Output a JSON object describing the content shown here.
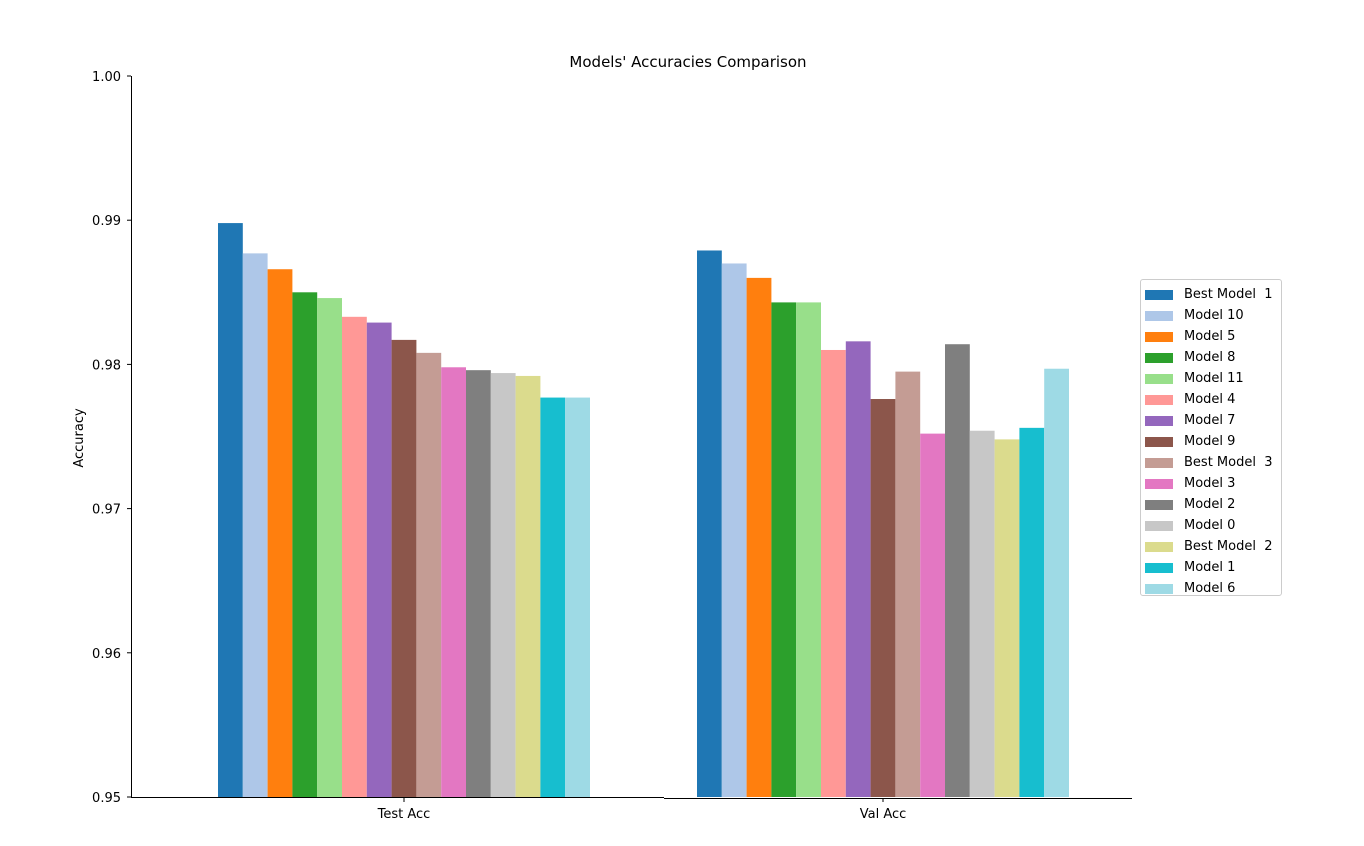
{
  "chart_data": {
    "type": "bar",
    "title": "Models' Accuracies Comparison",
    "xlabel": "",
    "ylabel": "Accuracy",
    "ylim": [
      0.95,
      1.0
    ],
    "yticks": [
      "0.95",
      "0.96",
      "0.97",
      "0.98",
      "0.99",
      "1.00"
    ],
    "categories": [
      "Test Acc",
      "Val Acc"
    ],
    "grid": false,
    "legend_position": "right",
    "series": [
      {
        "name": "Best Model  1",
        "color": "#1f77b4",
        "values": [
          0.9898,
          0.9879
        ]
      },
      {
        "name": "Model 10",
        "color": "#aec7e8",
        "values": [
          0.9877,
          0.987
        ]
      },
      {
        "name": "Model 5",
        "color": "#ff7f0e",
        "values": [
          0.9866,
          0.986
        ]
      },
      {
        "name": "Model 8",
        "color": "#2ca02c",
        "values": [
          0.985,
          0.9843
        ]
      },
      {
        "name": "Model 11",
        "color": "#98df8a",
        "values": [
          0.9846,
          0.9843
        ]
      },
      {
        "name": "Model 4",
        "color": "#ff9896",
        "values": [
          0.9833,
          0.981
        ]
      },
      {
        "name": "Model 7",
        "color": "#9467bd",
        "values": [
          0.9829,
          0.9816
        ]
      },
      {
        "name": "Model 9",
        "color": "#8c564b",
        "values": [
          0.9817,
          0.9776
        ]
      },
      {
        "name": "Best Model  3",
        "color": "#c49c94",
        "values": [
          0.9808,
          0.9795
        ]
      },
      {
        "name": "Model 3",
        "color": "#e377c2",
        "values": [
          0.9798,
          0.9752
        ]
      },
      {
        "name": "Model 2",
        "color": "#7f7f7f",
        "values": [
          0.9796,
          0.9814
        ]
      },
      {
        "name": "Model 0",
        "color": "#c7c7c7",
        "values": [
          0.9794,
          0.9754
        ]
      },
      {
        "name": "Best Model  2",
        "color": "#dbdb8d",
        "values": [
          0.9792,
          0.9748
        ]
      },
      {
        "name": "Model 1",
        "color": "#17becf",
        "values": [
          0.9777,
          0.9756
        ]
      },
      {
        "name": "Model 6",
        "color": "#9edae5",
        "values": [
          0.9777,
          0.9797
        ]
      }
    ]
  }
}
